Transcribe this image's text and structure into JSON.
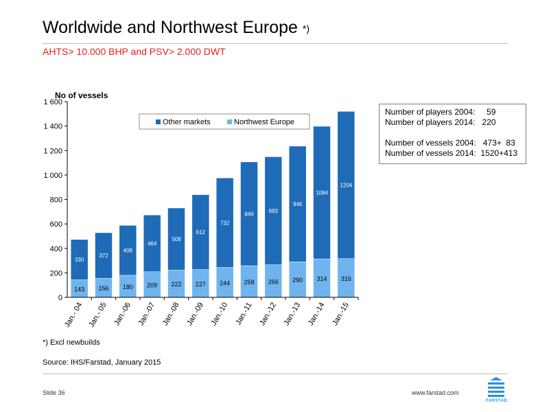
{
  "page": {
    "title": "Worldwide and Northwest Europe",
    "title_note": "*)",
    "subtitle": "AHTS> 10.000 BHP and PSV> 2.000 DWT",
    "footnote": "*) Excl newbuilds",
    "source": "Source: IHS/Farstad, January 2015",
    "slide": "Slide 36",
    "url": "www.farstad.com",
    "logo_text": "FARSTAD"
  },
  "info_box": {
    "line1": "Number of players 2004:     59",
    "line2": "Number of players 2014:   220",
    "line3": "Number of vessels 2004:   473+  83",
    "line4": "Number of vessels 2014:  1520+413"
  },
  "colors": {
    "other_markets": "#1f6bb8",
    "northwest_europe": "#6fb4ef",
    "subtitle": "#e2231a"
  },
  "chart_data": {
    "type": "bar",
    "stacked": true,
    "ylabel": "No of vessels",
    "ylim": [
      0,
      1600
    ],
    "yticks": [
      0,
      200,
      400,
      600,
      800,
      1000,
      1200,
      1400,
      1600
    ],
    "ytick_labels": [
      "0",
      "200",
      "400",
      "600",
      "800",
      "1 000",
      "1 200",
      "1 400",
      "1 600"
    ],
    "categories": [
      "Jan.- 04",
      "Jan.- 05",
      "Jan.-06",
      "Jan.-07",
      "Jan.-08",
      "Jan.-09",
      "Jan.-10",
      "Jan.-11",
      "Jan.-12",
      "Jan.-13",
      "Jan.-14",
      "Jan.-15"
    ],
    "legend_position": "top-center",
    "series": [
      {
        "name": "Northwest Europe",
        "values": [
          143,
          156,
          180,
          209,
          222,
          227,
          244,
          258,
          266,
          290,
          314,
          316
        ]
      },
      {
        "name": "Other markets",
        "values": [
          330,
          372,
          408,
          464,
          508,
          612,
          732,
          849,
          883,
          946,
          1084,
          1204
        ]
      }
    ]
  }
}
